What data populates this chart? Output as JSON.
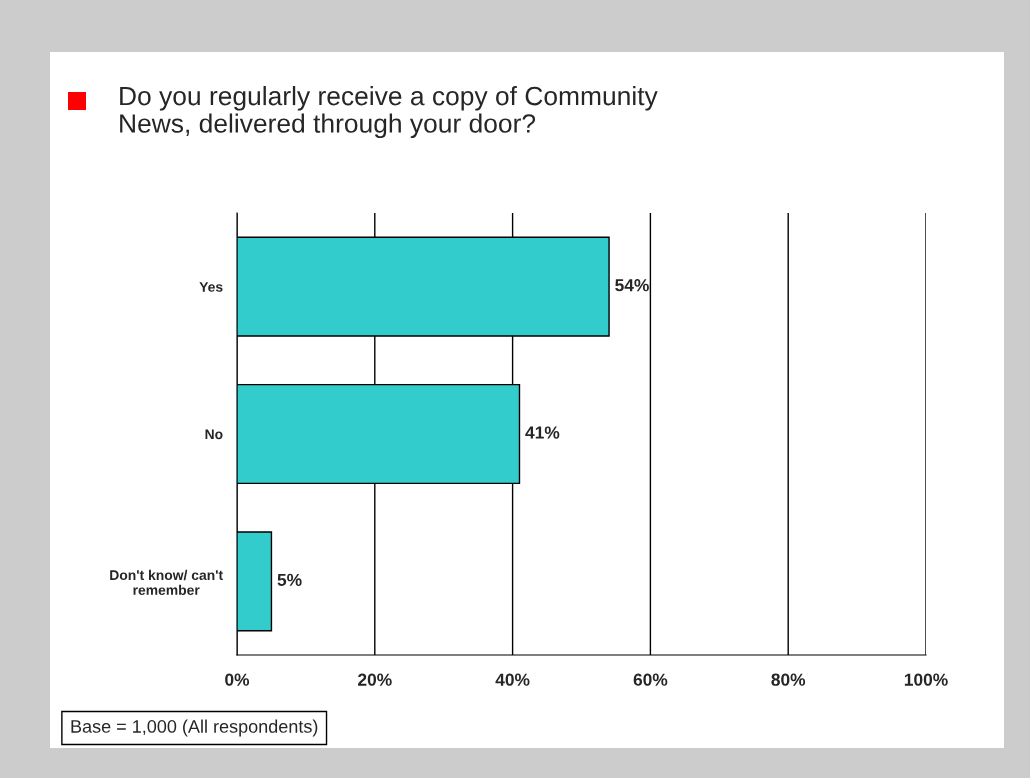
{
  "chart_data": {
    "type": "bar",
    "orientation": "horizontal",
    "title": "Do you regularly receive a copy of Community\nNews, delivered through your door?",
    "categories": [
      "Yes",
      "No",
      "Don't know/ can't\nremember"
    ],
    "values": [
      54,
      41,
      5
    ],
    "value_labels": [
      "54%",
      "41%",
      "5%"
    ],
    "color": "#33cccc",
    "xlim": [
      0,
      100
    ],
    "xticks": [
      {
        "value": 0,
        "label": "0%"
      },
      {
        "value": 20,
        "label": "20%"
      },
      {
        "value": 40,
        "label": "40%"
      },
      {
        "value": 60,
        "label": "60%"
      },
      {
        "value": 80,
        "label": "80%"
      },
      {
        "value": 100,
        "label": "100%"
      }
    ],
    "grid": "x",
    "annotations": [
      "Base = 1,000 (All respondents)"
    ]
  }
}
